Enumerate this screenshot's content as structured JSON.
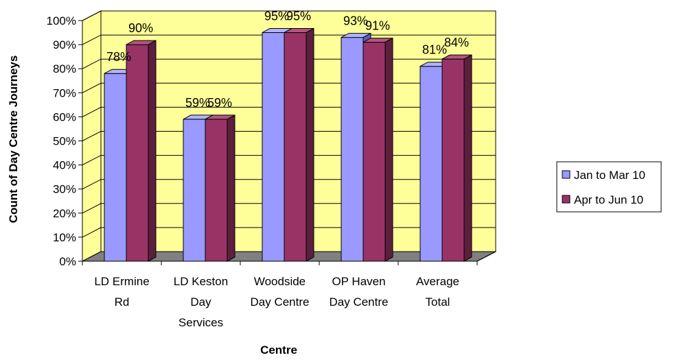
{
  "chart_data": {
    "type": "bar",
    "title": "",
    "xlabel": "Centre",
    "ylabel": "Count of Day Centre Journeys",
    "categories": [
      [
        "LD Ermine",
        "Rd"
      ],
      [
        "LD Keston",
        "Day",
        "Services"
      ],
      [
        "Woodside",
        "Day Centre"
      ],
      [
        "OP Haven",
        "Day Centre"
      ],
      [
        "Average",
        "Total"
      ]
    ],
    "series": [
      {
        "name": "Jan to Mar 10",
        "values": [
          78,
          59,
          95,
          93,
          81
        ],
        "labels": [
          "78%",
          "59%",
          "95%",
          "93%",
          "81%"
        ]
      },
      {
        "name": "Apr to Jun 10",
        "values": [
          90,
          59,
          95,
          91,
          84
        ],
        "labels": [
          "90%",
          "59%",
          "95%",
          "91%",
          "84%"
        ]
      }
    ],
    "ylim": [
      0,
      100
    ],
    "yticks": [
      "0%",
      "10%",
      "20%",
      "30%",
      "40%",
      "50%",
      "60%",
      "70%",
      "80%",
      "90%",
      "100%"
    ],
    "grid": true,
    "legend_position": "right",
    "colors": {
      "plot_background": "#ffff99",
      "floor": "#808080",
      "series": [
        "#9999ff",
        "#993366"
      ],
      "series_top": [
        "#b3b3ff",
        "#b35580"
      ],
      "series_side": [
        "#5c5cb3",
        "#5c1f3d"
      ]
    }
  }
}
